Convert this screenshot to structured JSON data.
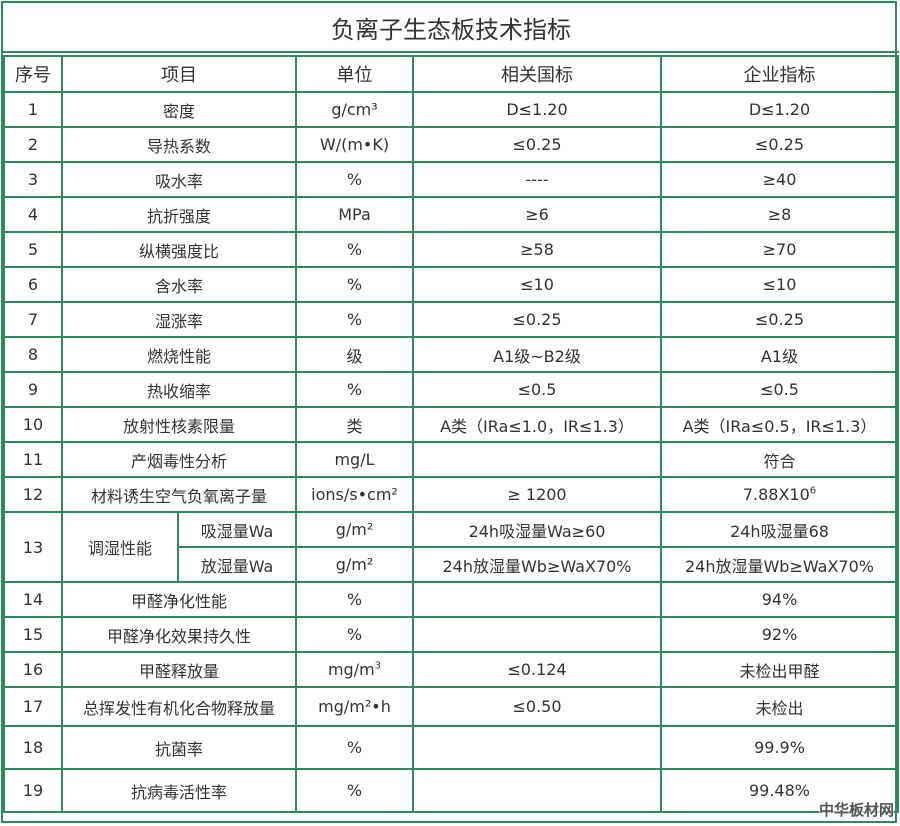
{
  "title": "负离子生态板技术指标",
  "headers": {
    "seq": "序号",
    "item": "项目",
    "unit": "单位",
    "national": "相关国标",
    "enterprise": "企业指标"
  },
  "rows": [
    {
      "seq": "1",
      "item": "密度",
      "unit": "g/cm³",
      "national": "D≤1.20",
      "enterprise": "D≤1.20"
    },
    {
      "seq": "2",
      "item": "导热系数",
      "unit": "W/(m•K)",
      "national": "≤0.25",
      "enterprise": "≤0.25"
    },
    {
      "seq": "3",
      "item": "吸水率",
      "unit": "%",
      "national": "----",
      "enterprise": "≥40"
    },
    {
      "seq": "4",
      "item": "抗折强度",
      "unit": "MPa",
      "national": "≥6",
      "enterprise": "≥8"
    },
    {
      "seq": "5",
      "item": "纵横强度比",
      "unit": "%",
      "national": "≥58",
      "enterprise": "≥70"
    },
    {
      "seq": "6",
      "item": "含水率",
      "unit": "%",
      "national": "≤10",
      "enterprise": "≤10"
    },
    {
      "seq": "7",
      "item": "湿涨率",
      "unit": "%",
      "national": "≤0.25",
      "enterprise": "≤0.25"
    },
    {
      "seq": "8",
      "item": "燃烧性能",
      "unit": "级",
      "national": "A1级~B2级",
      "enterprise": "A1级"
    },
    {
      "seq": "9",
      "item": "热收缩率",
      "unit": "%",
      "national": "≤0.5",
      "enterprise": "≤0.5"
    },
    {
      "seq": "10",
      "item": "放射性核素限量",
      "unit": "类",
      "national": "A类（IRa≤1.0，IR≤1.3）",
      "enterprise": "A类（IRa≤0.5，IR≤1.3）"
    },
    {
      "seq": "11",
      "item": "产烟毒性分析",
      "unit": "mg/L",
      "national": "",
      "enterprise": "符合"
    },
    {
      "seq": "12",
      "item": "材料诱生空气负氧离子量",
      "unit": "ions/s•cm²",
      "national": "≥ 1200",
      "enterprise": "7.88X10",
      "enterprise_sup": "6"
    }
  ],
  "humidity": {
    "seq": "13",
    "item": "调湿性能",
    "sub": [
      {
        "item": "吸湿量Wa",
        "unit": "g/m²",
        "national": "24h吸湿量Wa≥60",
        "enterprise": "24h吸湿量68"
      },
      {
        "item": "放湿量Wa",
        "unit": "g/m²",
        "national": "24h放湿量Wb≥WaX70%",
        "enterprise": "24h放湿量Wb≥WaX70%"
      }
    ]
  },
  "rows2": [
    {
      "seq": "14",
      "item": "甲醛净化性能",
      "unit": "%",
      "national": "",
      "enterprise": "94%"
    },
    {
      "seq": "15",
      "item": "甲醛净化效果持久性",
      "unit": "%",
      "national": "",
      "enterprise": "92%"
    },
    {
      "seq": "16",
      "item": "甲醛释放量",
      "unit": "mg/m",
      "unit_sup": "3",
      "national": "≤0.124",
      "enterprise": "未检出甲醛"
    },
    {
      "seq": "17",
      "item": "总挥发性有机化合物释放量",
      "unit": "mg/m²•h",
      "national": "≤0.50",
      "enterprise": "未检出"
    },
    {
      "seq": "18",
      "item": "抗菌率",
      "unit": "%",
      "national": "",
      "enterprise": "99.9%"
    },
    {
      "seq": "19",
      "item": "抗病毒活性率",
      "unit": "%",
      "national": "",
      "enterprise": "99.48%"
    }
  ],
  "watermark": "中华板材网",
  "colors": {
    "border": "#2b8a5a",
    "highlight": "#1c9a55"
  }
}
